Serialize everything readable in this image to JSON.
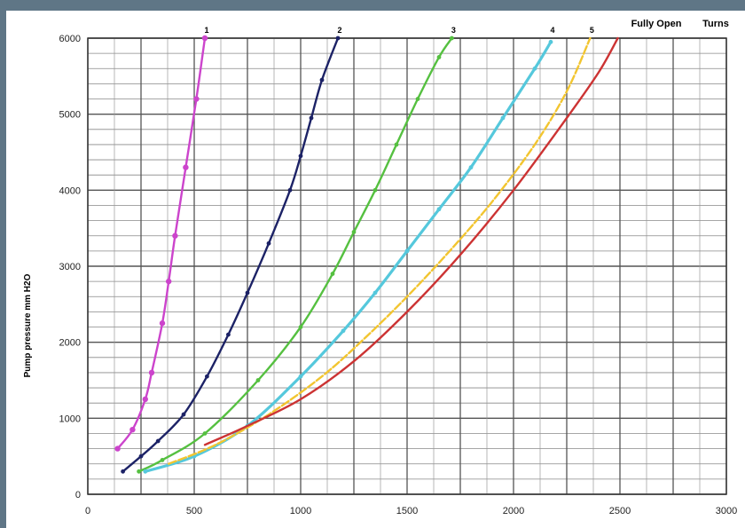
{
  "chart_data": {
    "type": "line",
    "ylabel": "Pump pressure mm H2O",
    "xlabel": "",
    "xlim": [
      0,
      3000
    ],
    "ylim": [
      0,
      6000
    ],
    "x_ticks": [
      "0",
      "500",
      "1000",
      "1500",
      "2000",
      "2500",
      "3000"
    ],
    "y_ticks": [
      "0",
      "1000",
      "2000",
      "3000",
      "4000",
      "5000",
      "6000"
    ],
    "header_labels": [
      "Fully Open",
      "Turns"
    ],
    "grid": true,
    "series": [
      {
        "name": "1",
        "color": "#cc44cc",
        "marker": "circle",
        "x": [
          140,
          210,
          270,
          300,
          350,
          380,
          410,
          460,
          510,
          550
        ],
        "y": [
          600,
          850,
          1250,
          1600,
          2250,
          2800,
          3400,
          4300,
          5200,
          6000
        ]
      },
      {
        "name": "2",
        "color": "#1c2266",
        "marker": "dot",
        "x": [
          165,
          250,
          330,
          450,
          560,
          660,
          750,
          850,
          950,
          1000,
          1050,
          1100,
          1175
        ],
        "y": [
          300,
          500,
          700,
          1050,
          1550,
          2100,
          2650,
          3300,
          4000,
          4450,
          4950,
          5450,
          6000
        ]
      },
      {
        "name": "3",
        "color": "#55c040",
        "marker": "dot",
        "x": [
          240,
          350,
          550,
          800,
          1000,
          1150,
          1250,
          1350,
          1450,
          1550,
          1650,
          1710
        ],
        "y": [
          300,
          450,
          800,
          1500,
          2200,
          2900,
          3450,
          4000,
          4600,
          5200,
          5750,
          6000
        ]
      },
      {
        "name": "4",
        "color": "#55c8dc",
        "marker": "dot",
        "x": [
          270,
          500,
          750,
          1000,
          1200,
          1350,
          1500,
          1650,
          1800,
          1950,
          2100,
          2175
        ],
        "y": [
          300,
          500,
          900,
          1550,
          2150,
          2650,
          3200,
          3750,
          4300,
          4950,
          5600,
          5950
        ]
      },
      {
        "name": "5",
        "color": "#f2c530",
        "marker": "none",
        "x": [
          380,
          600,
          850,
          1100,
          1300,
          1500,
          1700,
          1900,
          2100,
          2250,
          2360
        ],
        "y": [
          400,
          650,
          1050,
          1550,
          2050,
          2600,
          3200,
          3850,
          4600,
          5300,
          6000
        ]
      },
      {
        "name": "Fully Open",
        "color": "#cc3333",
        "marker": "none",
        "x": [
          550,
          750,
          1000,
          1250,
          1500,
          1750,
          2000,
          2250,
          2400,
          2490
        ],
        "y": [
          650,
          900,
          1250,
          1750,
          2400,
          3150,
          4000,
          4950,
          5550,
          6000
        ]
      }
    ]
  }
}
